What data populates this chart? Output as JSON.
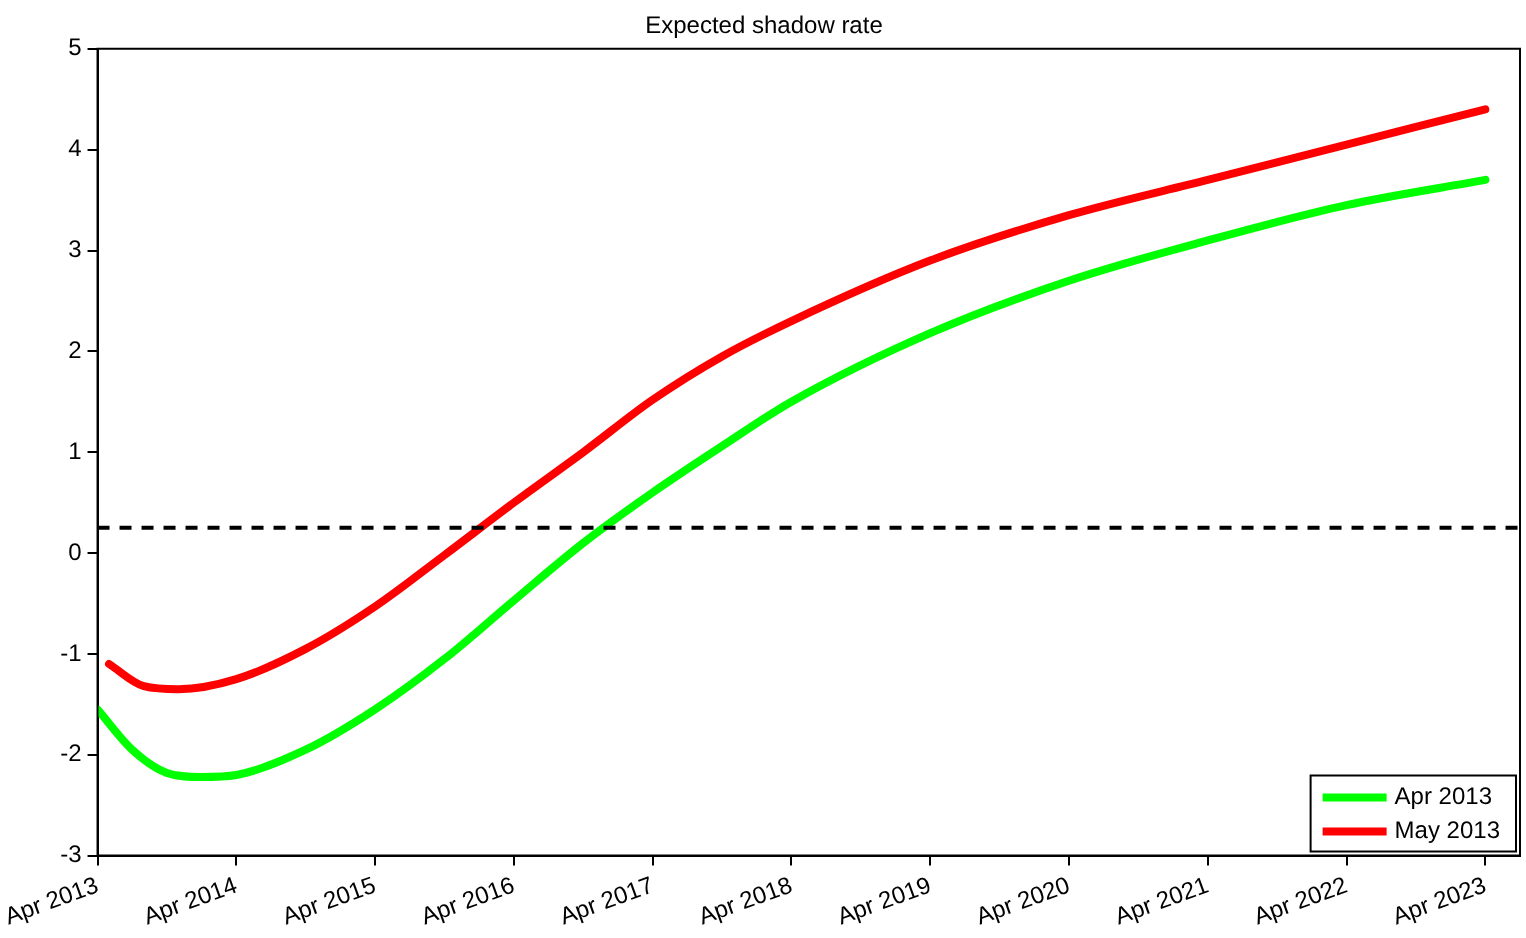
{
  "chart_data": {
    "type": "line",
    "title": "Expected shadow rate",
    "xlim": [
      "2013-04",
      "2023-07"
    ],
    "xticks": [
      {
        "value": "2013-04",
        "label": "Apr 2013"
      },
      {
        "value": "2014-04",
        "label": "Apr 2014"
      },
      {
        "value": "2015-04",
        "label": "Apr 2015"
      },
      {
        "value": "2016-04",
        "label": "Apr 2016"
      },
      {
        "value": "2017-04",
        "label": "Apr 2017"
      },
      {
        "value": "2018-04",
        "label": "Apr 2018"
      },
      {
        "value": "2019-04",
        "label": "Apr 2019"
      },
      {
        "value": "2020-04",
        "label": "Apr 2020"
      },
      {
        "value": "2021-04",
        "label": "Apr 2021"
      },
      {
        "value": "2022-04",
        "label": "Apr 2022"
      },
      {
        "value": "2023-04",
        "label": "Apr 2023"
      }
    ],
    "ylim": [
      -3,
      5
    ],
    "yticks": [
      -3,
      -2,
      -1,
      0,
      1,
      2,
      3,
      4,
      5
    ],
    "grid": false,
    "legend": "bottom right",
    "line_style": "solid",
    "marker": "none",
    "ref_lines": [
      {
        "axis": "y",
        "value": 0.25,
        "color": "#000000",
        "line_style": "dashed"
      }
    ],
    "series": [
      {
        "name": "Apr 2013",
        "color": "#00ff00",
        "x": [
          "2013-04",
          "2013-07",
          "2013-10",
          "2014-01",
          "2014-04",
          "2014-10",
          "2015-04",
          "2015-10",
          "2016-04",
          "2016-10",
          "2017-04",
          "2017-10",
          "2018-04",
          "2019-04",
          "2020-04",
          "2021-04",
          "2022-04",
          "2023-04"
        ],
        "values": [
          -1.55,
          -1.95,
          -2.18,
          -2.22,
          -2.2,
          -1.95,
          -1.55,
          -1.05,
          -0.47,
          0.1,
          0.6,
          1.06,
          1.5,
          2.18,
          2.7,
          3.1,
          3.45,
          3.7
        ]
      },
      {
        "name": "May 2013",
        "color": "#ff0000",
        "x": [
          "2013-05",
          "2013-08",
          "2013-11",
          "2014-04",
          "2014-10",
          "2015-04",
          "2015-10",
          "2016-04",
          "2016-10",
          "2017-04",
          "2017-10",
          "2018-04",
          "2019-04",
          "2020-04",
          "2021-04",
          "2022-04",
          "2023-04"
        ],
        "values": [
          -1.1,
          -1.32,
          -1.35,
          -1.25,
          -0.95,
          -0.53,
          -0.02,
          0.5,
          1.0,
          1.52,
          1.95,
          2.3,
          2.9,
          3.35,
          3.7,
          4.05,
          4.4
        ]
      }
    ]
  }
}
